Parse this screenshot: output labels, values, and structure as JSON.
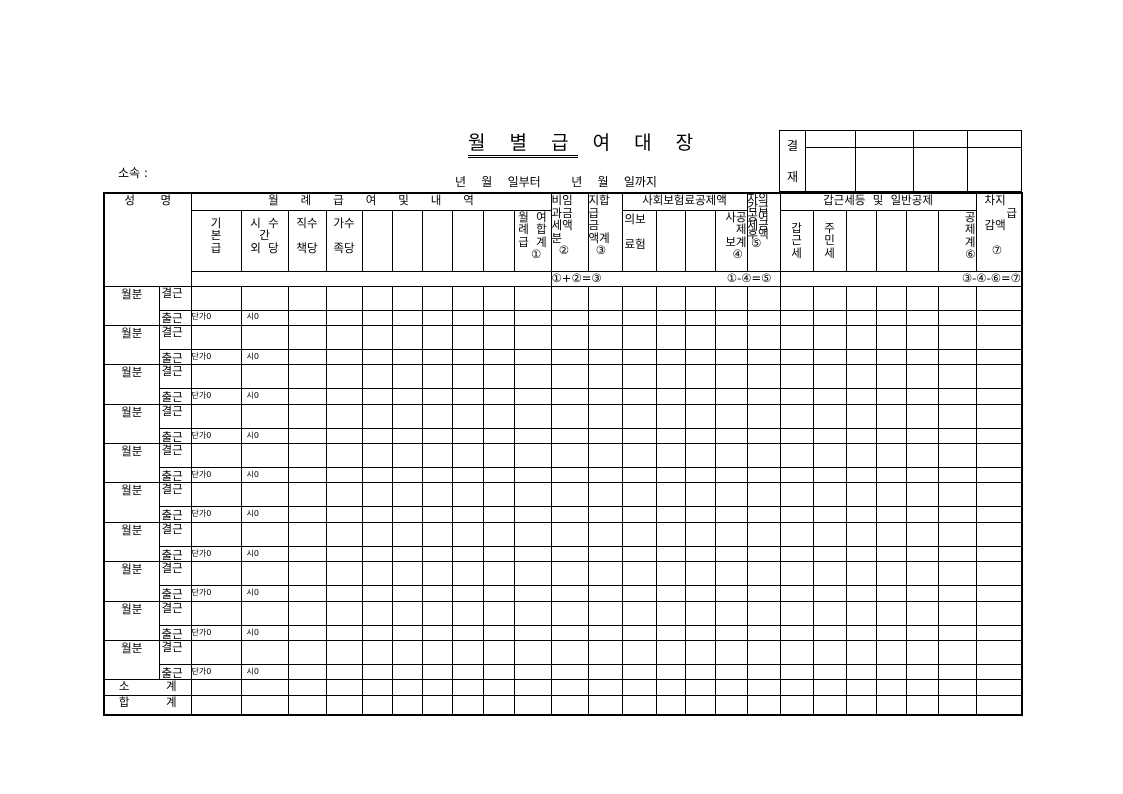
{
  "title_underlined": "월 별 급",
  "title_rest": "여 대 장",
  "department_label": "소속 :",
  "period_text": "년    월    일부터        년    월    일까지",
  "approval": {
    "label_top": "결",
    "label_bottom": "재"
  },
  "header": {
    "name": "성       명",
    "monthly_group": "월      례      급      여      및      내      역",
    "basic_pay": "기\n본\n급",
    "overtime": "시  수\n간\n외  당",
    "position_allowance": "직수\n\n책당",
    "family_allowance": "가수\n\n족당",
    "monthly_total": "월  여\n례  합\n급  계\n  ①",
    "nontaxable": "비임\n과금\n세액\n분\n  ②",
    "pay_total": "지합\n급\n금\n액계\n  ③",
    "social_group": "사회보험료공제액",
    "health_insurance": "의보\n\n료험",
    "social_total": "사공\n제\n보계\n④ ",
    "net_after": "차의\n감급\n공여\n제금\n후액\n ⑤",
    "tax_group": "갑근세등  및  일반공제",
    "income_tax": "갑\n근\n세",
    "resident_tax": "주\n민\n세",
    "deduction_total": "공\n제\n계\n⑥",
    "net_pay": "차지\n      급\n감액\n\n  ⑦",
    "formula1": "①+②=③",
    "formula2": "①-④=⑤",
    "formula3": "③-④-⑥=⑦"
  },
  "row_labels": {
    "month": "월분",
    "absent": "결근",
    "present": "출근",
    "unit_price": "단가0",
    "hours": "시0"
  },
  "subtotal": "소          계",
  "total": "합          계"
}
